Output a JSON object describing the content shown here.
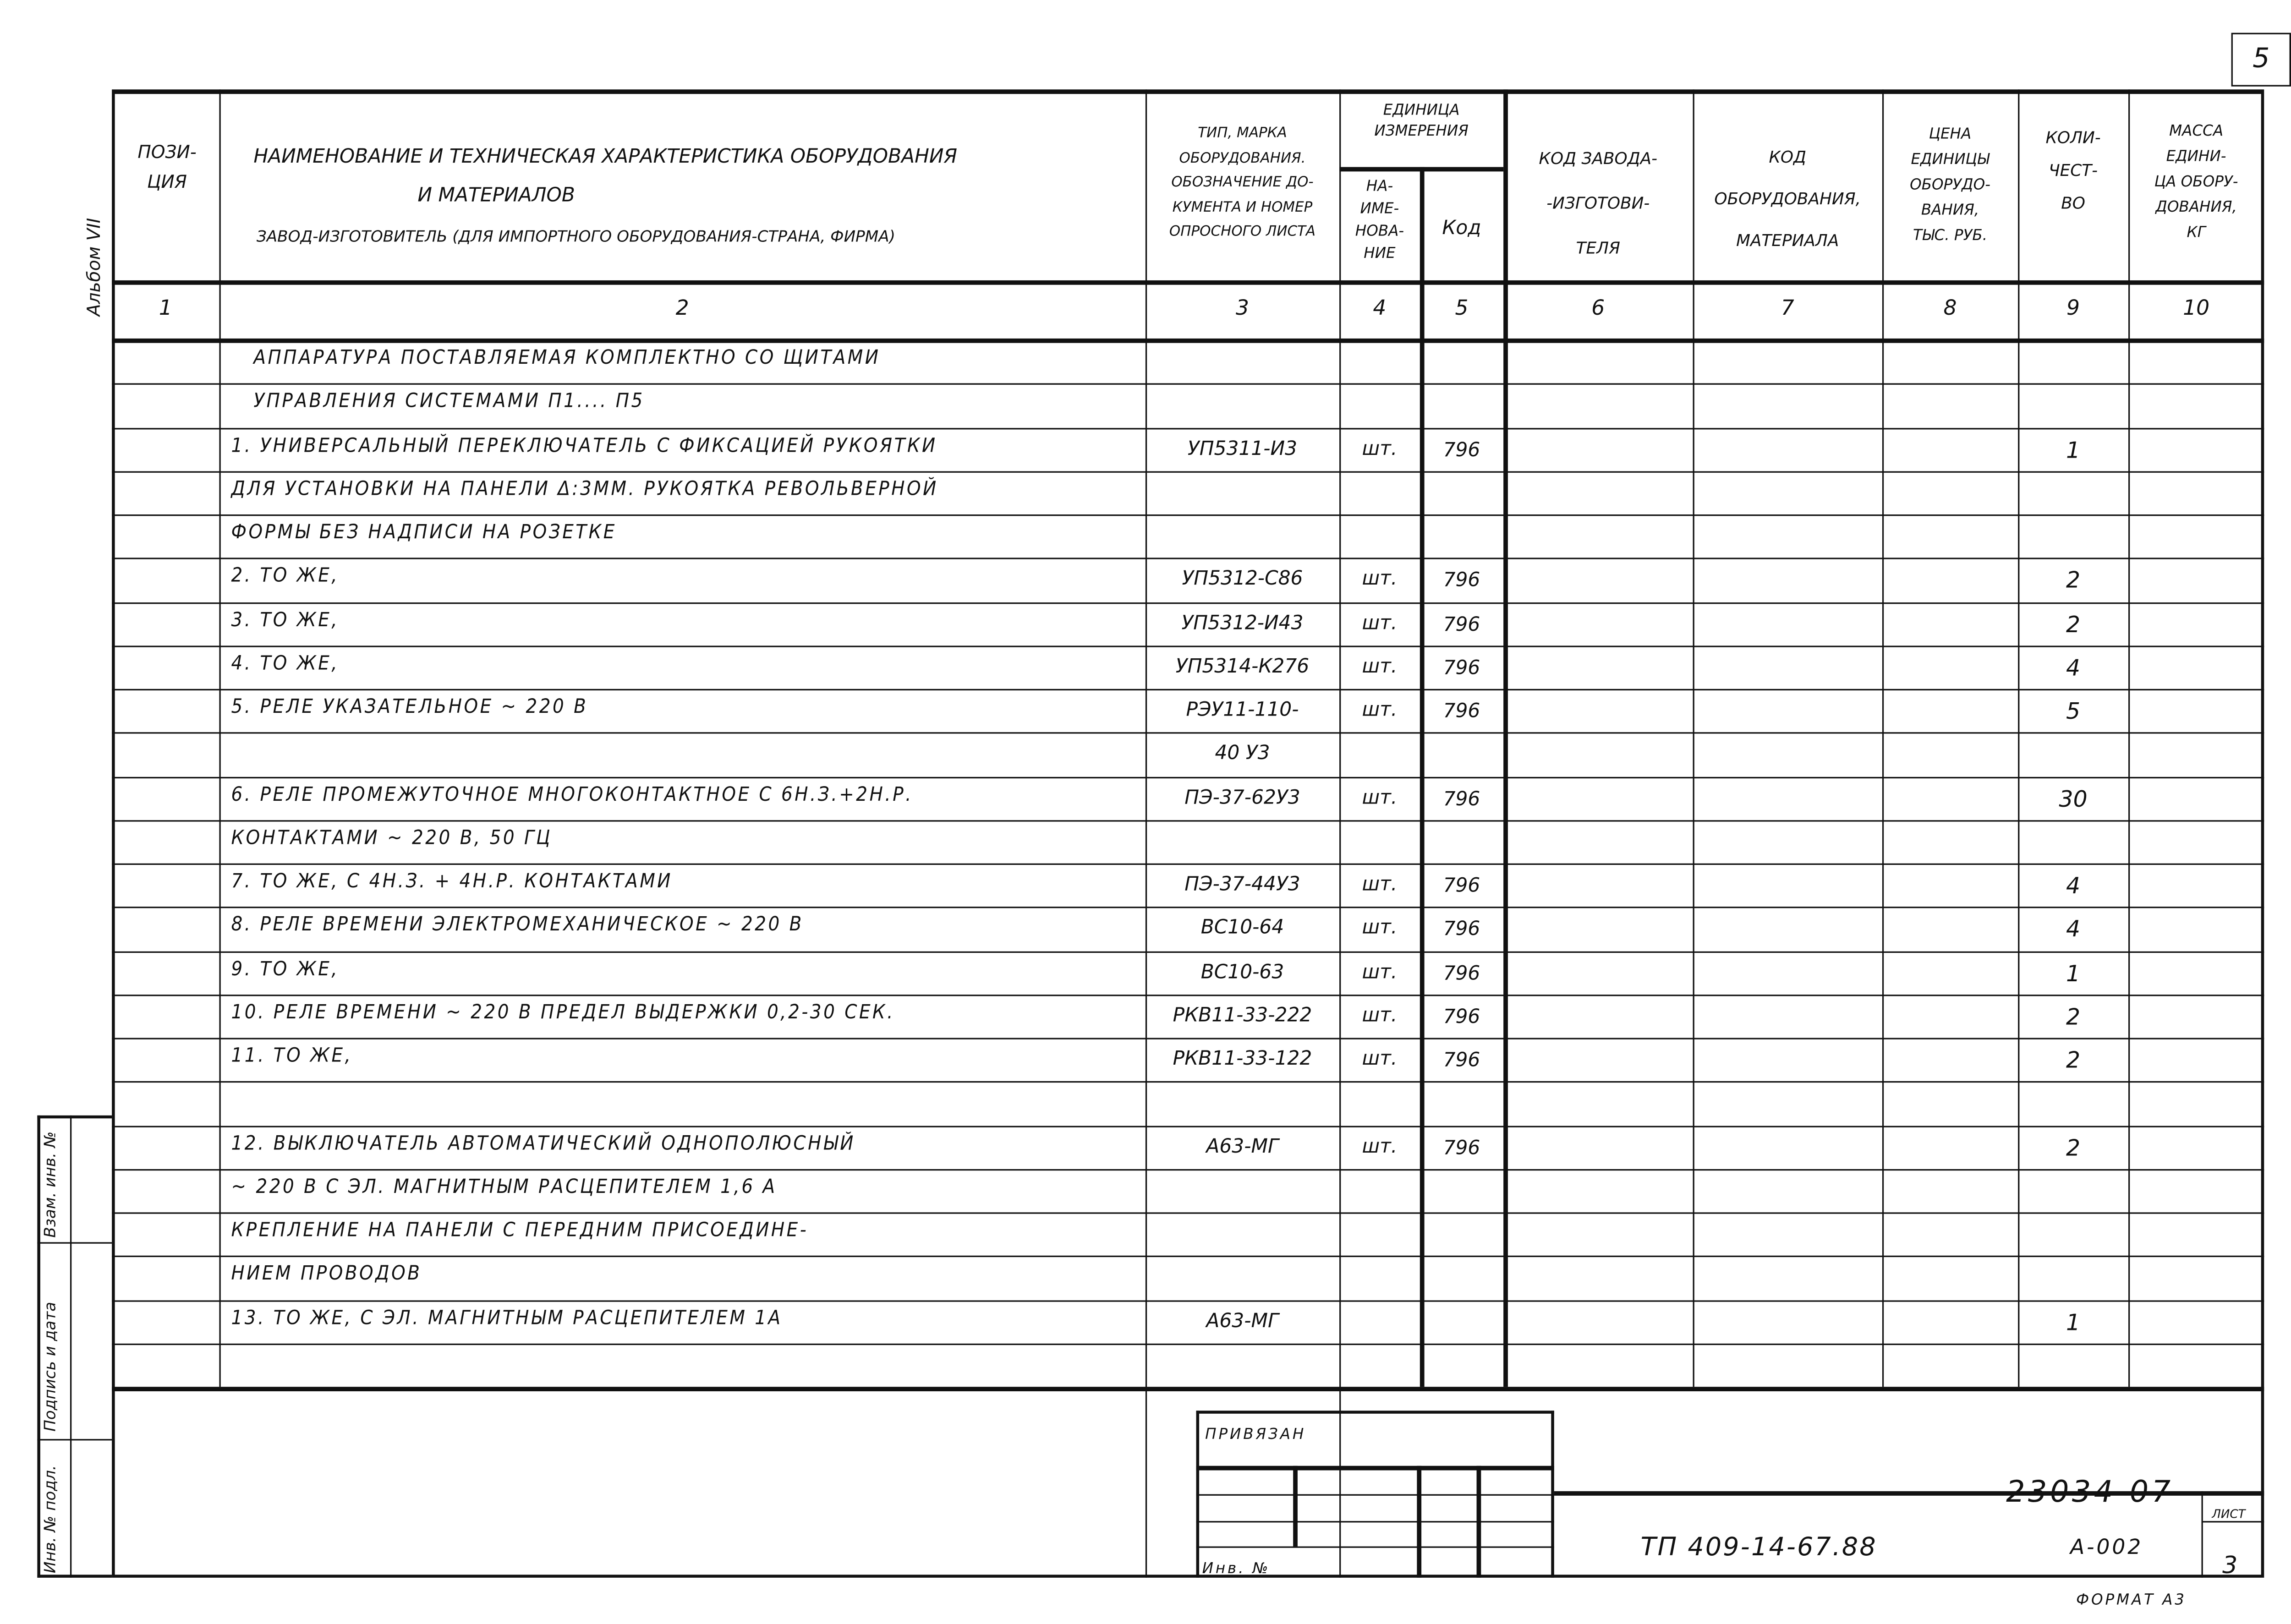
{
  "sheet_number_corner": "5",
  "album_label": "Альбом VII",
  "header": {
    "col1": "Пози-\nция",
    "col2_line1": "Наименование и техническая характеристика оборудования",
    "col2_line2": "и материалов",
    "col2_line3": "Завод-изготовитель (для импортного оборудования-страна, фирма)",
    "col3": "Тип, марка\nоборудования.\nОбозначение до-\nкумента и номер\nопросного листа",
    "col45_group": "Единица\nизмерения",
    "col4": "На-\nиме-\nнова-\nние",
    "col5": "Код",
    "col6": "Код завода-\n-изготови-\nтеля",
    "col7": "Код\nоборудования,\nматериала",
    "col8": "Цена\nединицы\nоборудо-\nвания,\nтыс. руб.",
    "col9": "Коли-\nчест-\nво",
    "col10": "Масса\nедини-\nца обору-\nдования,\nкг"
  },
  "column_numbers": [
    "1",
    "2",
    "3",
    "4",
    "5",
    "6",
    "7",
    "8",
    "9",
    "10"
  ],
  "rows": [
    {
      "name": "Аппаратура поставляемая комплектно со щитами",
      "type": "",
      "unit": "",
      "code": "",
      "qty": ""
    },
    {
      "name": "управления системами П1.... П5",
      "type": "",
      "unit": "",
      "code": "",
      "qty": ""
    },
    {
      "name": "1. Универсальный переключатель с фиксацией рукоятки",
      "type": "УП5311-И3",
      "unit": "шт.",
      "code": "796",
      "qty": "1"
    },
    {
      "name": "для установки на панели δ:3мм. Рукоятка револьверной",
      "type": "",
      "unit": "",
      "code": "",
      "qty": ""
    },
    {
      "name": "формы без надписи на розетке",
      "type": "",
      "unit": "",
      "code": "",
      "qty": ""
    },
    {
      "name": "2. То же,",
      "type": "УП5312-С86",
      "unit": "шт.",
      "code": "796",
      "qty": "2"
    },
    {
      "name": "3. То же,",
      "type": "УП5312-И43",
      "unit": "шт.",
      "code": "796",
      "qty": "2"
    },
    {
      "name": "4. То же,",
      "type": "УП5314-К276",
      "unit": "шт.",
      "code": "796",
      "qty": "4"
    },
    {
      "name": "5. Реле указательное ~ 220 В",
      "type": "РЭУ11-110-",
      "unit": "шт.",
      "code": "796",
      "qty": "5"
    },
    {
      "name": "",
      "type": "40 У3",
      "unit": "",
      "code": "",
      "qty": ""
    },
    {
      "name": "6. Реле промежуточное многоконтактное с 6Н.З.+2Н.Р.",
      "type": "ПЭ-37-62У3",
      "unit": "шт.",
      "code": "796",
      "qty": "30"
    },
    {
      "name": "контактами ~ 220 В, 50 Гц",
      "type": "",
      "unit": "",
      "code": "",
      "qty": ""
    },
    {
      "name": "7. То же, с 4Н.З. + 4Н.Р. контактами",
      "type": "ПЭ-37-44У3",
      "unit": "шт.",
      "code": "796",
      "qty": "4"
    },
    {
      "name": "8. Реле времени электромеханическое ~ 220 В",
      "type": "ВС10-64",
      "unit": "шт.",
      "code": "796",
      "qty": "4"
    },
    {
      "name": "9. То же,",
      "type": "ВС10-63",
      "unit": "шт.",
      "code": "796",
      "qty": "1"
    },
    {
      "name": "10. Реле времени ~ 220 В предел выдержки 0,2-30 сек.",
      "type": "РКВ11-33-222",
      "unit": "шт.",
      "code": "796",
      "qty": "2"
    },
    {
      "name": "11. То же,",
      "type": "РКВ11-33-122",
      "unit": "шт.",
      "code": "796",
      "qty": "2"
    },
    {
      "name": "",
      "type": "",
      "unit": "",
      "code": "",
      "qty": ""
    },
    {
      "name": "12. Выключатель автоматический однополюсный",
      "type": "А63-МГ",
      "unit": "шт.",
      "code": "796",
      "qty": "2"
    },
    {
      "name": "~ 220 В с эл. магнитным расцепителем 1,6 А",
      "type": "",
      "unit": "",
      "code": "",
      "qty": ""
    },
    {
      "name": "крепление на панели с передним присоедине-",
      "type": "",
      "unit": "",
      "code": "",
      "qty": ""
    },
    {
      "name": "нием проводов",
      "type": "",
      "unit": "",
      "code": "",
      "qty": ""
    },
    {
      "name": "13. То же, с эл. магнитным расцепителем 1А",
      "type": "А63-МГ",
      "unit": "",
      "code": "",
      "qty": "1"
    },
    {
      "name": "",
      "type": "",
      "unit": "",
      "code": "",
      "qty": ""
    }
  ],
  "side_stamp": {
    "replaced": "Взам. инв. №",
    "signature": "Подпись и дата",
    "inv_original": "Инв. № подл."
  },
  "stamp": {
    "bound": "Привязан",
    "inv": "Инв. №"
  },
  "title_block": {
    "project_number": "23034-07",
    "designation": "ТП 409-14-67.88",
    "album": "А-002",
    "sheet_label": "Лист",
    "sheet": "3",
    "format": "Формат А3"
  }
}
